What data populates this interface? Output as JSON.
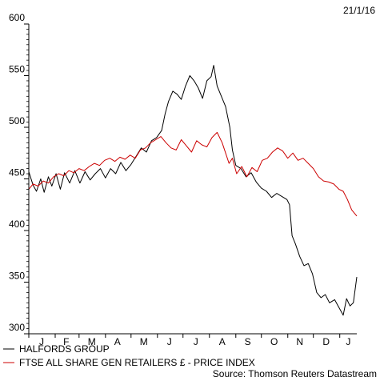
{
  "chart_data": {
    "type": "line",
    "date_label": "21/1/16",
    "source_label": "Source: Thomson Reuters Datastream",
    "ylim": [
      300,
      600
    ],
    "y_ticks": [
      300,
      350,
      400,
      450,
      500,
      550,
      600
    ],
    "x_range": [
      "2015-01-01",
      "2016-01-21"
    ],
    "month_labels": [
      {
        "label": "J",
        "date": "2015-01-16"
      },
      {
        "label": "F",
        "date": "2015-02-14"
      },
      {
        "label": "M",
        "date": "2015-03-16"
      },
      {
        "label": "A",
        "date": "2015-04-15"
      },
      {
        "label": "M",
        "date": "2015-05-16"
      },
      {
        "label": "J",
        "date": "2015-06-15"
      },
      {
        "label": "J",
        "date": "2015-07-16"
      },
      {
        "label": "A",
        "date": "2015-08-16"
      },
      {
        "label": "S",
        "date": "2015-09-15"
      },
      {
        "label": "O",
        "date": "2015-10-16"
      },
      {
        "label": "N",
        "date": "2015-11-15"
      },
      {
        "label": "D",
        "date": "2015-12-16"
      },
      {
        "label": "J",
        "date": "2016-01-11"
      }
    ],
    "series": [
      {
        "name": "HALFORDS GROUP",
        "color": "#000000",
        "points": [
          [
            "2015-01-01",
            457
          ],
          [
            "2015-01-06",
            444
          ],
          [
            "2015-01-10",
            438
          ],
          [
            "2015-01-15",
            450
          ],
          [
            "2015-01-19",
            437
          ],
          [
            "2015-01-24",
            452
          ],
          [
            "2015-01-28",
            443
          ],
          [
            "2015-02-02",
            455
          ],
          [
            "2015-02-07",
            440
          ],
          [
            "2015-02-12",
            456
          ],
          [
            "2015-02-18",
            446
          ],
          [
            "2015-02-24",
            458
          ],
          [
            "2015-03-02",
            446
          ],
          [
            "2015-03-08",
            457
          ],
          [
            "2015-03-14",
            449
          ],
          [
            "2015-03-20",
            455
          ],
          [
            "2015-03-26",
            460
          ],
          [
            "2015-04-01",
            451
          ],
          [
            "2015-04-07",
            460
          ],
          [
            "2015-04-13",
            455
          ],
          [
            "2015-04-19",
            466
          ],
          [
            "2015-04-25",
            458
          ],
          [
            "2015-05-01",
            464
          ],
          [
            "2015-05-07",
            472
          ],
          [
            "2015-05-13",
            480
          ],
          [
            "2015-05-19",
            476
          ],
          [
            "2015-05-25",
            487
          ],
          [
            "2015-05-31",
            490
          ],
          [
            "2015-06-06",
            497
          ],
          [
            "2015-06-10",
            513
          ],
          [
            "2015-06-14",
            525
          ],
          [
            "2015-06-19",
            535
          ],
          [
            "2015-06-24",
            532
          ],
          [
            "2015-06-29",
            527
          ],
          [
            "2015-07-04",
            540
          ],
          [
            "2015-07-09",
            550
          ],
          [
            "2015-07-14",
            545
          ],
          [
            "2015-07-19",
            538
          ],
          [
            "2015-07-24",
            528
          ],
          [
            "2015-07-29",
            545
          ],
          [
            "2015-08-03",
            549
          ],
          [
            "2015-08-06",
            560
          ],
          [
            "2015-08-10",
            540
          ],
          [
            "2015-08-15",
            530
          ],
          [
            "2015-08-20",
            520
          ],
          [
            "2015-08-25",
            500
          ],
          [
            "2015-08-28",
            478
          ],
          [
            "2015-09-01",
            463
          ],
          [
            "2015-09-07",
            460
          ],
          [
            "2015-09-13",
            452
          ],
          [
            "2015-09-19",
            456
          ],
          [
            "2015-09-25",
            447
          ],
          [
            "2015-10-01",
            441
          ],
          [
            "2015-10-07",
            438
          ],
          [
            "2015-10-13",
            432
          ],
          [
            "2015-10-19",
            436
          ],
          [
            "2015-10-25",
            433
          ],
          [
            "2015-10-31",
            430
          ],
          [
            "2015-11-03",
            425
          ],
          [
            "2015-11-06",
            395
          ],
          [
            "2015-11-10",
            387
          ],
          [
            "2015-11-15",
            375
          ],
          [
            "2015-11-20",
            366
          ],
          [
            "2015-11-25",
            368
          ],
          [
            "2015-11-30",
            358
          ],
          [
            "2015-12-05",
            340
          ],
          [
            "2015-12-10",
            335
          ],
          [
            "2015-12-15",
            338
          ],
          [
            "2015-12-20",
            330
          ],
          [
            "2015-12-26",
            333
          ],
          [
            "2016-01-01",
            324
          ],
          [
            "2016-01-05",
            318
          ],
          [
            "2016-01-09",
            334
          ],
          [
            "2016-01-13",
            327
          ],
          [
            "2016-01-17",
            330
          ],
          [
            "2016-01-21",
            355
          ]
        ]
      },
      {
        "name": "FTSE ALL SHARE GEN RETAILERS £ - PRICE INDEX",
        "color": "#cc0000",
        "points": [
          [
            "2015-01-01",
            440
          ],
          [
            "2015-01-06",
            445
          ],
          [
            "2015-01-12",
            443
          ],
          [
            "2015-01-18",
            448
          ],
          [
            "2015-01-24",
            446
          ],
          [
            "2015-01-30",
            452
          ],
          [
            "2015-02-05",
            455
          ],
          [
            "2015-02-11",
            453
          ],
          [
            "2015-02-17",
            458
          ],
          [
            "2015-02-23",
            456
          ],
          [
            "2015-03-01",
            460
          ],
          [
            "2015-03-07",
            458
          ],
          [
            "2015-03-13",
            462
          ],
          [
            "2015-03-19",
            465
          ],
          [
            "2015-03-25",
            463
          ],
          [
            "2015-03-31",
            468
          ],
          [
            "2015-04-06",
            470
          ],
          [
            "2015-04-12",
            467
          ],
          [
            "2015-04-18",
            471
          ],
          [
            "2015-04-24",
            469
          ],
          [
            "2015-04-30",
            473
          ],
          [
            "2015-05-06",
            470
          ],
          [
            "2015-05-12",
            478
          ],
          [
            "2015-05-18",
            480
          ],
          [
            "2015-05-24",
            485
          ],
          [
            "2015-05-30",
            488
          ],
          [
            "2015-06-05",
            491
          ],
          [
            "2015-06-11",
            485
          ],
          [
            "2015-06-17",
            480
          ],
          [
            "2015-06-23",
            478
          ],
          [
            "2015-06-29",
            488
          ],
          [
            "2015-07-05",
            482
          ],
          [
            "2015-07-11",
            476
          ],
          [
            "2015-07-17",
            487
          ],
          [
            "2015-07-23",
            483
          ],
          [
            "2015-07-29",
            481
          ],
          [
            "2015-08-04",
            490
          ],
          [
            "2015-08-10",
            495
          ],
          [
            "2015-08-16",
            485
          ],
          [
            "2015-08-20",
            475
          ],
          [
            "2015-08-24",
            465
          ],
          [
            "2015-08-28",
            470
          ],
          [
            "2015-09-02",
            455
          ],
          [
            "2015-09-08",
            462
          ],
          [
            "2015-09-14",
            452
          ],
          [
            "2015-09-20",
            461
          ],
          [
            "2015-09-26",
            457
          ],
          [
            "2015-10-02",
            468
          ],
          [
            "2015-10-08",
            470
          ],
          [
            "2015-10-14",
            476
          ],
          [
            "2015-10-20",
            480
          ],
          [
            "2015-10-26",
            477
          ],
          [
            "2015-11-01",
            470
          ],
          [
            "2015-11-07",
            475
          ],
          [
            "2015-11-13",
            468
          ],
          [
            "2015-11-19",
            470
          ],
          [
            "2015-11-25",
            465
          ],
          [
            "2015-12-01",
            460
          ],
          [
            "2015-12-07",
            452
          ],
          [
            "2015-12-13",
            448
          ],
          [
            "2015-12-19",
            447
          ],
          [
            "2015-12-25",
            445
          ],
          [
            "2015-12-31",
            440
          ],
          [
            "2016-01-05",
            438
          ],
          [
            "2016-01-10",
            430
          ],
          [
            "2016-01-15",
            420
          ],
          [
            "2016-01-21",
            414
          ]
        ]
      }
    ]
  }
}
